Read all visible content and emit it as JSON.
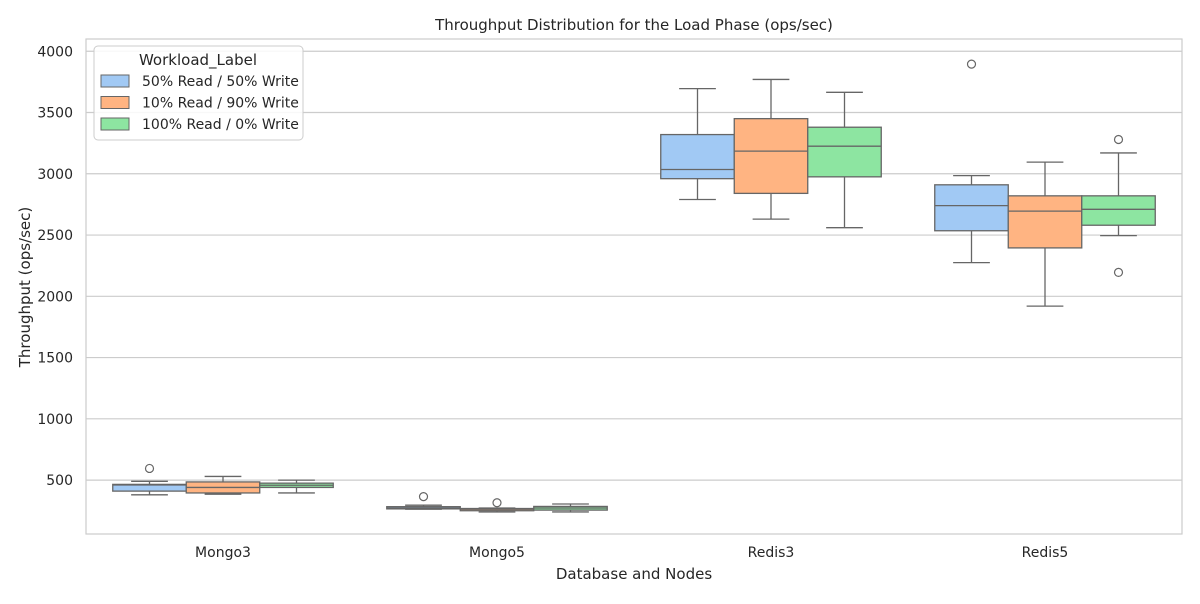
{
  "chart_data": {
    "type": "box",
    "title": "Throughput Distribution for the Load Phase (ops/sec)",
    "xlabel": "Database and Nodes",
    "ylabel": "Throughput (ops/sec)",
    "categories": [
      "Mongo3",
      "Mongo5",
      "Redis3",
      "Redis5"
    ],
    "ylim": [
      60,
      4100
    ],
    "yticks": [
      500,
      1000,
      1500,
      2000,
      2500,
      3000,
      3500,
      4000
    ],
    "grid": "horizontal",
    "legend": {
      "title": "Workload_Label",
      "position": "top-left"
    },
    "series": [
      {
        "name": "50% Read / 50% Write",
        "color": "#a1c9f4",
        "boxes": [
          {
            "whisker_low": 380,
            "q1": 410,
            "median": 460,
            "q3": 465,
            "whisker_high": 490,
            "outliers": [
              595
            ]
          },
          {
            "whisker_low": 262,
            "q1": 265,
            "median": 272,
            "q3": 283,
            "whisker_high": 295,
            "outliers": [
              365
            ]
          },
          {
            "whisker_low": 2790,
            "q1": 2960,
            "median": 3035,
            "q3": 3320,
            "whisker_high": 3695,
            "outliers": []
          },
          {
            "whisker_low": 2275,
            "q1": 2535,
            "median": 2740,
            "q3": 2910,
            "whisker_high": 2985,
            "outliers": [
              3895
            ]
          }
        ]
      },
      {
        "name": "10% Read / 90% Write",
        "color": "#ffb482",
        "boxes": [
          {
            "whisker_low": 385,
            "q1": 395,
            "median": 440,
            "q3": 485,
            "whisker_high": 530,
            "outliers": []
          },
          {
            "whisker_low": 240,
            "q1": 250,
            "median": 262,
            "q3": 268,
            "whisker_high": 272,
            "outliers": [
              315
            ]
          },
          {
            "whisker_low": 2630,
            "q1": 2840,
            "median": 3185,
            "q3": 3450,
            "whisker_high": 3770,
            "outliers": []
          },
          {
            "whisker_low": 1920,
            "q1": 2395,
            "median": 2695,
            "q3": 2820,
            "whisker_high": 3095,
            "outliers": []
          }
        ]
      },
      {
        "name": "100% Read / 0% Write",
        "color": "#8de5a1",
        "boxes": [
          {
            "whisker_low": 395,
            "q1": 440,
            "median": 458,
            "q3": 475,
            "whisker_high": 500,
            "outliers": []
          },
          {
            "whisker_low": 240,
            "q1": 255,
            "median": 272,
            "q3": 285,
            "whisker_high": 305,
            "outliers": []
          },
          {
            "whisker_low": 2560,
            "q1": 2975,
            "median": 3225,
            "q3": 3380,
            "whisker_high": 3665,
            "outliers": []
          },
          {
            "whisker_low": 2495,
            "q1": 2580,
            "median": 2710,
            "q3": 2820,
            "whisker_high": 3170,
            "outliers": [
              3280,
              2195
            ]
          }
        ]
      }
    ]
  }
}
